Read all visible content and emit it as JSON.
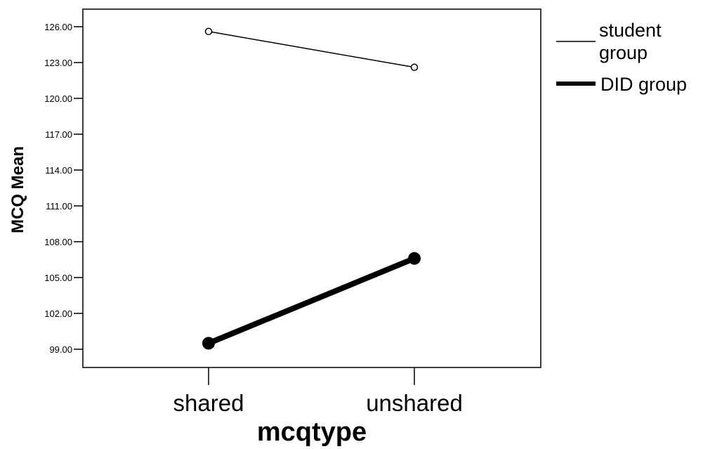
{
  "chart_data": {
    "type": "line",
    "title": "",
    "xlabel": "mcqtype",
    "ylabel": "MCQ Mean",
    "categories": [
      "shared",
      "unshared"
    ],
    "ylim": [
      97.5,
      127.5
    ],
    "yticks": [
      "99.00",
      "102.00",
      "105.00",
      "108.00",
      "111.00",
      "114.00",
      "117.00",
      "120.00",
      "123.00",
      "126.00"
    ],
    "series": [
      {
        "name": "student group",
        "values": [
          125.6,
          122.6
        ],
        "color": "#000000",
        "style": "thin",
        "marker": "open-circle"
      },
      {
        "name": "DID group",
        "values": [
          99.5,
          106.6
        ],
        "color": "#000000",
        "style": "thick",
        "marker": "filled-circle"
      }
    ],
    "legend": {
      "placement": "right",
      "entries": [
        {
          "line1": "student",
          "line2": "group"
        },
        {
          "line1": "DID group",
          "line2": ""
        }
      ]
    },
    "grid": false
  }
}
